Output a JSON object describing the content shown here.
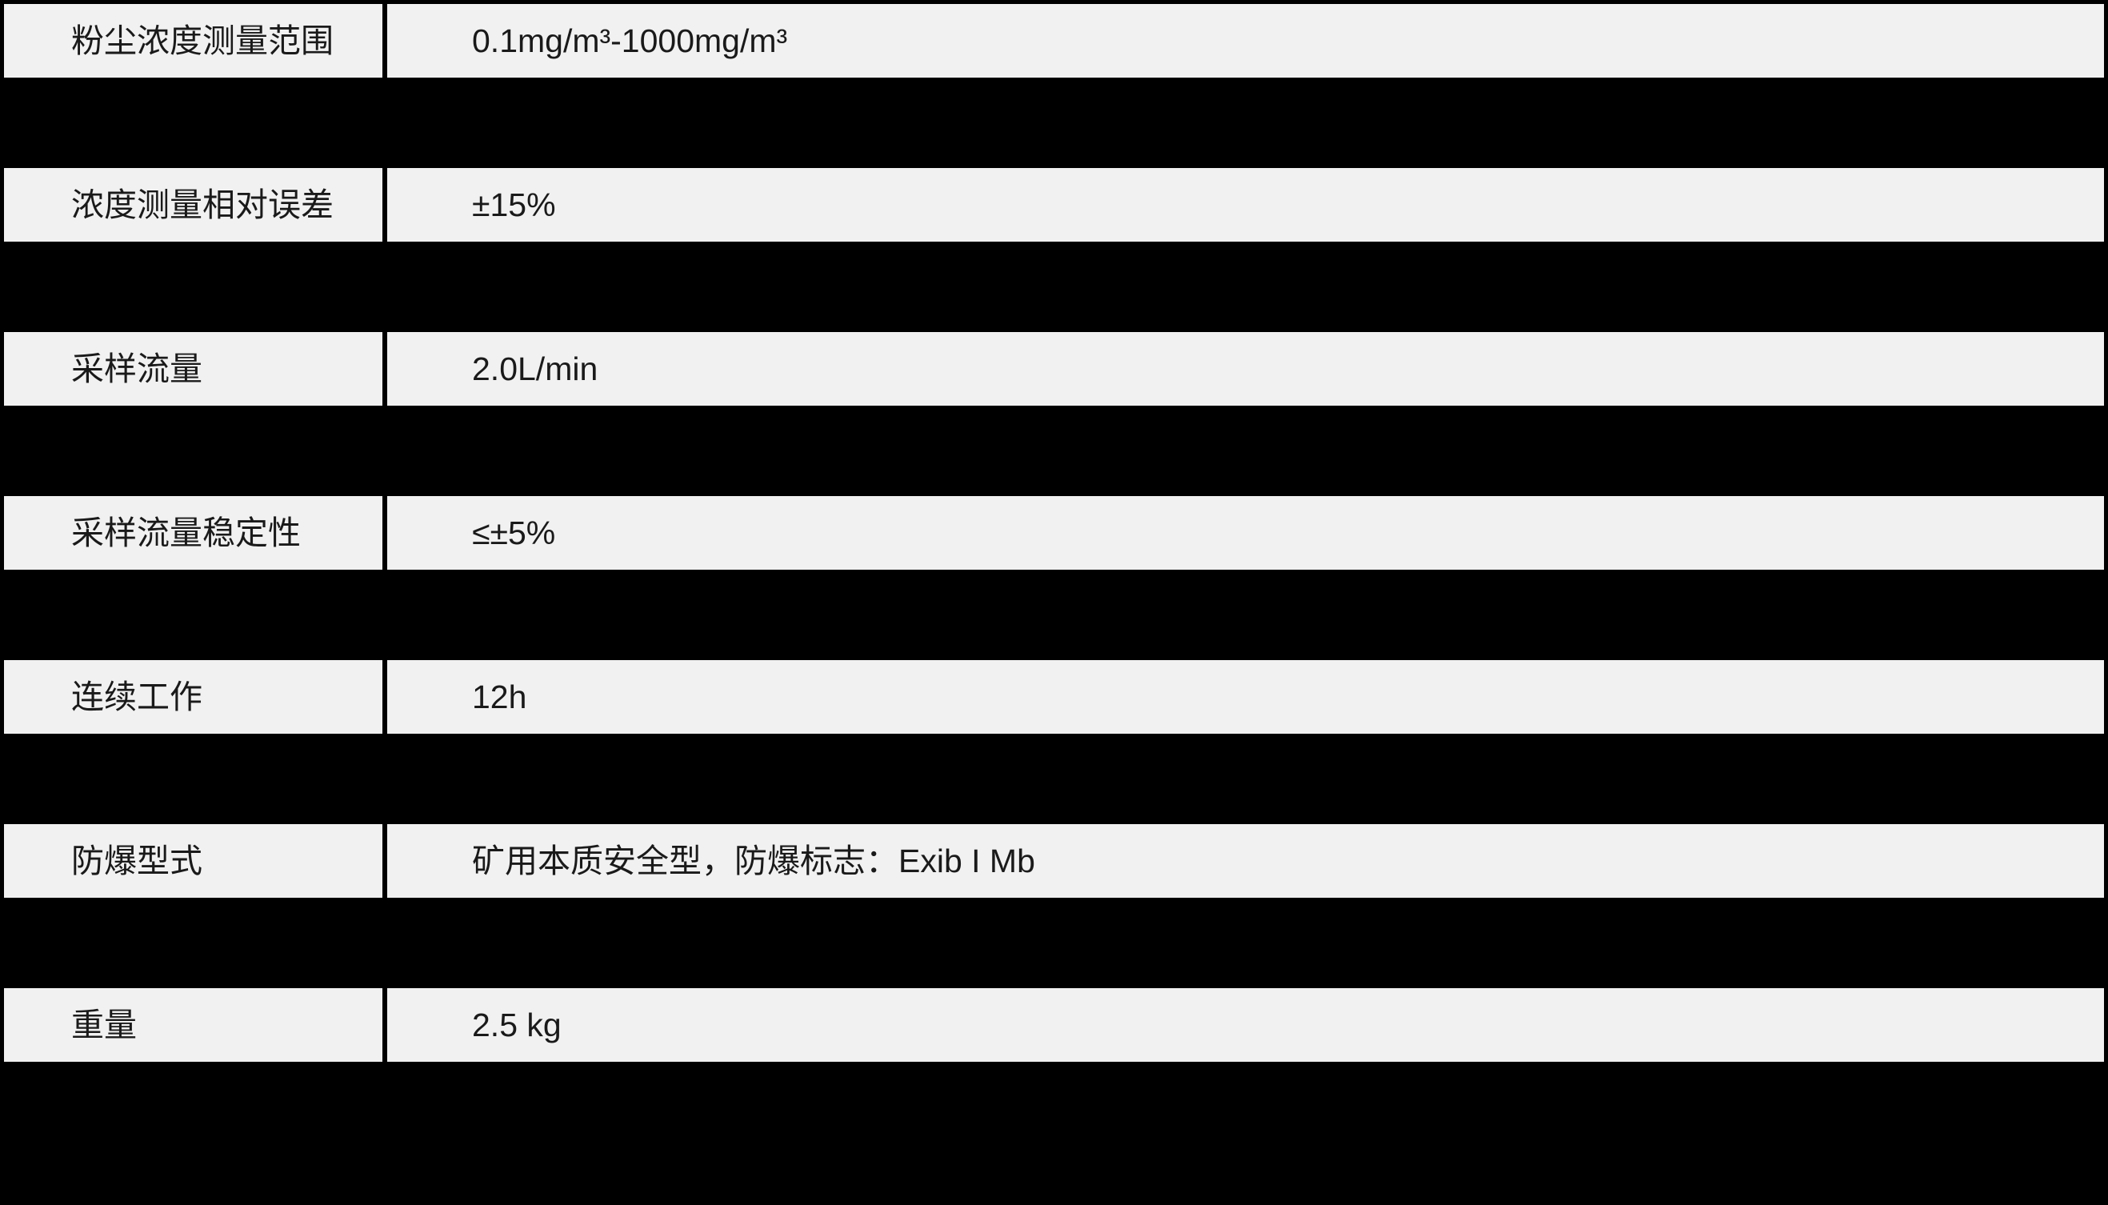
{
  "table": {
    "rows": [
      {
        "label": "粉尘浓度测量范围",
        "value": "0.1mg/m³-1000mg/m³"
      },
      {
        "label": "浓度测量相对误差",
        "value": "±15%"
      },
      {
        "label": "采样流量",
        "value": "2.0L/min"
      },
      {
        "label": "采样流量稳定性",
        "value": "≤±5%"
      },
      {
        "label": "连续工作",
        "value": "12h"
      },
      {
        "label": "防爆型式",
        "value": "矿用本质安全型，防爆标志：Exib I Mb"
      },
      {
        "label": "重量",
        "value": "2.5 kg"
      }
    ]
  },
  "colors": {
    "bg": "#000000",
    "row_bg": "#f1f1f1",
    "text": "#1a1a1a"
  }
}
